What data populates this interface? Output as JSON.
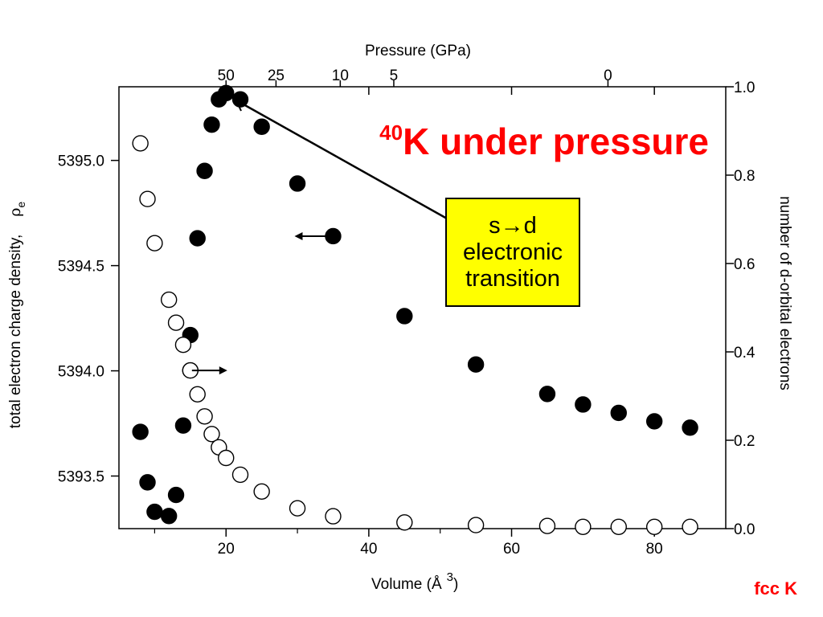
{
  "chart_data": {
    "type": "scatter",
    "title": "K under pressure",
    "title_superscript": "40",
    "xlabel": "Volume (Å",
    "xlabel_superscript": "3",
    "xlabel_suffix": ")",
    "top_xlabel": "Pressure (GPa)",
    "ylabel_left": "total electron charge density,",
    "ylabel_left_symbol": "ρ",
    "ylabel_left_subscript": "e",
    "ylabel_right": "number of d-orbital electrons",
    "xlim": [
      5,
      90
    ],
    "ylim_left": [
      5393.25,
      5395.35
    ],
    "ylim_right": [
      0.0,
      1.0
    ],
    "x_ticks": [
      20,
      40,
      60,
      80
    ],
    "x_ticks_minor": [
      10,
      30,
      50,
      70
    ],
    "y_left_ticks": [
      {
        "value": 5393.5,
        "label": "5393.5"
      },
      {
        "value": 5394.0,
        "label": "5394.0"
      },
      {
        "value": 5394.5,
        "label": "5394.5"
      },
      {
        "value": 5395.0,
        "label": "5395.0"
      }
    ],
    "y_right_ticks": [
      {
        "value": 0.0,
        "label": "0.0"
      },
      {
        "value": 0.2,
        "label": "0.2"
      },
      {
        "value": 0.4,
        "label": "0.4"
      },
      {
        "value": 0.6,
        "label": "0.6"
      },
      {
        "value": 0.8,
        "label": "0.8"
      },
      {
        "value": 1.0,
        "label": "1.0"
      }
    ],
    "top_ticks": [
      {
        "label": "50",
        "volume": 20
      },
      {
        "label": "25",
        "volume": 27
      },
      {
        "label": "10",
        "volume": 36
      },
      {
        "label": "5",
        "volume": 43.5
      },
      {
        "label": "0",
        "volume": 73.5
      }
    ],
    "series": [
      {
        "marker": "filled-circle",
        "axis": "left",
        "x": [
          8,
          9,
          10,
          12,
          13,
          14,
          15,
          16,
          17,
          18,
          19,
          20,
          22,
          25,
          30,
          35,
          45,
          55,
          65,
          70,
          75,
          80,
          85
        ],
        "y": [
          5393.71,
          5393.47,
          5393.33,
          5393.31,
          5393.41,
          5393.74,
          5394.17,
          5394.63,
          5394.95,
          5395.17,
          5395.29,
          5395.32,
          5395.29,
          5395.16,
          5394.89,
          5394.64,
          5394.26,
          5394.03,
          5393.89,
          5393.84,
          5393.8,
          5393.76,
          5393.73
        ]
      },
      {
        "marker": "open-circle",
        "axis": "right",
        "x": [
          8,
          9,
          10,
          12,
          13,
          14,
          15,
          16,
          17,
          18,
          19,
          20,
          22,
          25,
          30,
          35,
          45,
          55,
          65,
          70,
          75,
          80,
          85
        ],
        "y": [
          0.872,
          0.746,
          0.646,
          0.518,
          0.466,
          0.416,
          0.358,
          0.304,
          0.254,
          0.214,
          0.184,
          0.16,
          0.122,
          0.084,
          0.046,
          0.028,
          0.014,
          0.008,
          0.006,
          0.004,
          0.004,
          0.004,
          0.004
        ]
      }
    ],
    "annotations": [
      {
        "kind": "series-arrow",
        "marker_x": 35,
        "marker_y_left": 5394.64,
        "direction": "left",
        "meaning": "filled circles use left axis"
      },
      {
        "kind": "series-arrow",
        "marker_x": 15,
        "marker_y_right": 0.358,
        "direction": "right",
        "meaning": "open circles use right axis"
      }
    ]
  },
  "callout": {
    "line1_s": "s",
    "line1_arrow": "→",
    "line1_d": "d",
    "line2": "electronic",
    "line3": "transition"
  },
  "footer": "fcc K"
}
